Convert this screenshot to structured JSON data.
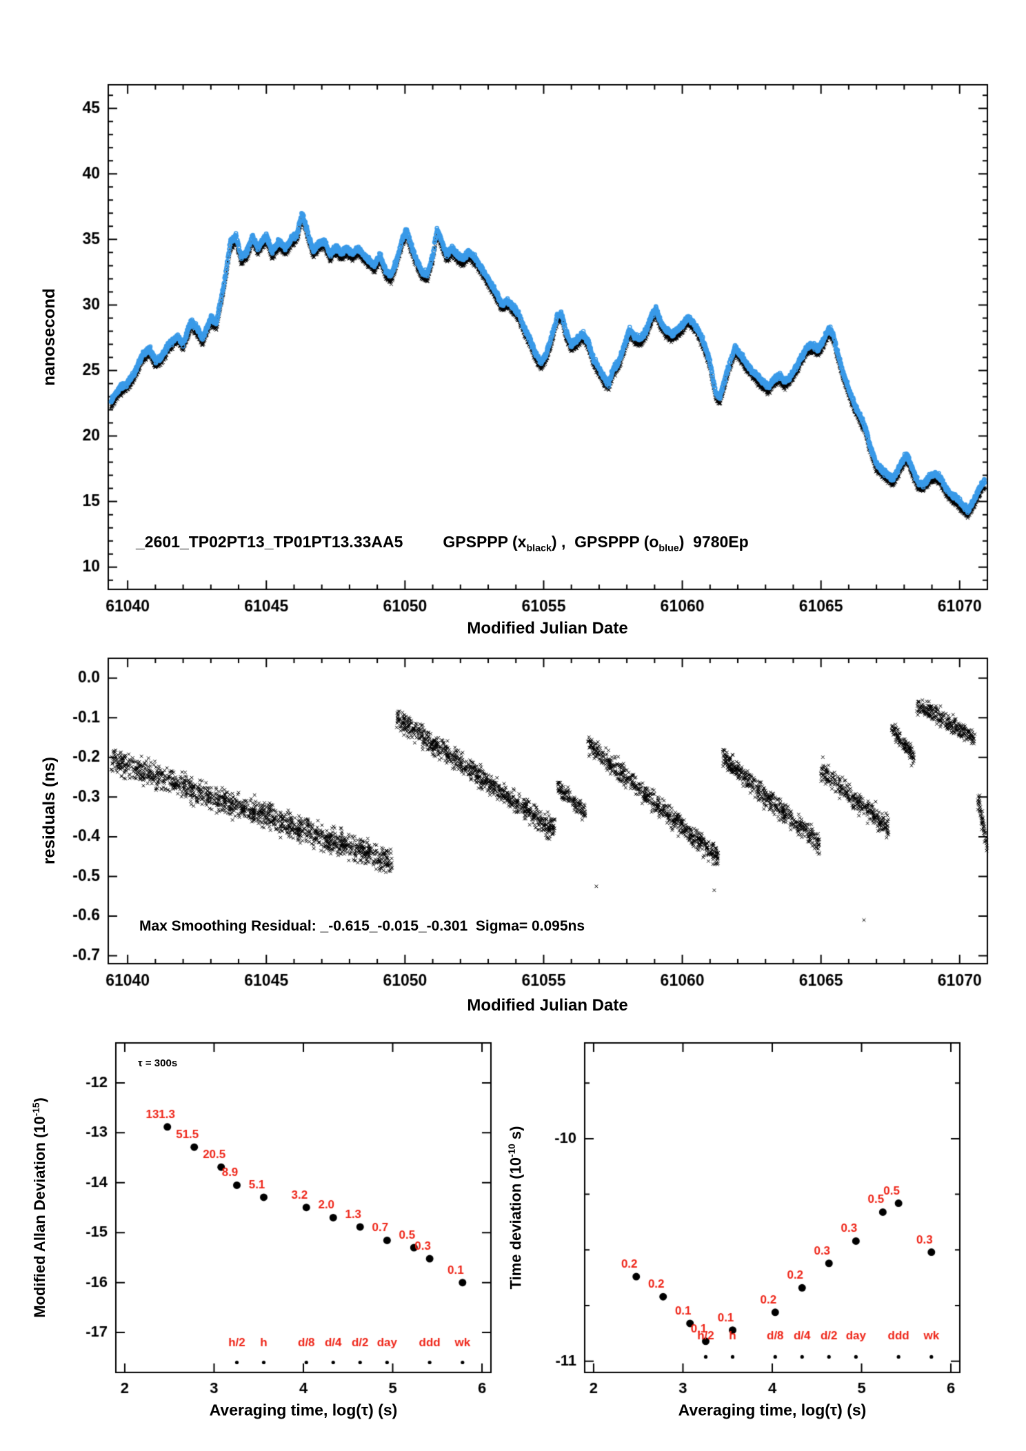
{
  "colors": {
    "axis": "#000000",
    "marker_black": "#000000",
    "marker_blue": "#3899e8",
    "label_red": "#ee2417"
  },
  "chart_data": [
    {
      "id": "phase-comparison",
      "type": "scatter",
      "xlabel": "Modified Julian Date",
      "ylabel": "nanosecond",
      "xlim": [
        61039.3,
        61071.0
      ],
      "ylim": [
        8.3,
        46.8
      ],
      "xticks": [
        61040,
        61045,
        61050,
        61055,
        61060,
        61065,
        61070
      ],
      "yticks": [
        10,
        15,
        20,
        25,
        30,
        35,
        40,
        45
      ],
      "xminor_step": 1,
      "yminor_step": 1,
      "annotation": {
        "id": "_2601_TP02PT13_TP01PT13.33AA5",
        "leg1": "GPSPPP (x",
        "leg1_sub": "black",
        "leg2": ") ,  GPSPPP (o",
        "leg2_sub": "blue",
        "leg3": ")  9780Ep"
      },
      "series": [
        {
          "name": "GPSPPP x black",
          "marker": "x",
          "color": "#000000",
          "offset": 0
        },
        {
          "name": "GPSPPP o blue",
          "marker": "o",
          "color": "#3899e8",
          "offset": 0.45
        }
      ],
      "noise_ns": 0.3,
      "keypoints": [
        [
          61039.4,
          22.2
        ],
        [
          61039.7,
          23.2
        ],
        [
          61040.0,
          23.6
        ],
        [
          61040.3,
          24.6
        ],
        [
          61040.55,
          25.8
        ],
        [
          61040.8,
          26.2
        ],
        [
          61041.0,
          25.3
        ],
        [
          61041.2,
          25.6
        ],
        [
          61041.5,
          26.6
        ],
        [
          61041.8,
          27.2
        ],
        [
          61042.0,
          26.6
        ],
        [
          61042.3,
          28.3
        ],
        [
          61042.5,
          27.8
        ],
        [
          61042.7,
          27.0
        ],
        [
          61043.0,
          28.6
        ],
        [
          61043.2,
          28.2
        ],
        [
          61043.5,
          31.5
        ],
        [
          61043.7,
          34.3
        ],
        [
          61043.9,
          34.8
        ],
        [
          61044.1,
          33.2
        ],
        [
          61044.3,
          33.6
        ],
        [
          61044.5,
          34.8
        ],
        [
          61044.7,
          33.9
        ],
        [
          61045.0,
          34.9
        ],
        [
          61045.2,
          33.6
        ],
        [
          61045.45,
          34.4
        ],
        [
          61045.7,
          33.9
        ],
        [
          61045.9,
          34.6
        ],
        [
          61046.1,
          34.9
        ],
        [
          61046.3,
          36.6
        ],
        [
          61046.5,
          35.0
        ],
        [
          61046.7,
          33.7
        ],
        [
          61046.9,
          34.3
        ],
        [
          61047.1,
          34.5
        ],
        [
          61047.3,
          33.4
        ],
        [
          61047.5,
          34.0
        ],
        [
          61047.7,
          33.5
        ],
        [
          61047.9,
          33.9
        ],
        [
          61048.1,
          33.5
        ],
        [
          61048.3,
          33.9
        ],
        [
          61048.5,
          33.4
        ],
        [
          61048.7,
          33.0
        ],
        [
          61048.9,
          32.6
        ],
        [
          61049.1,
          33.4
        ],
        [
          61049.3,
          32.2
        ],
        [
          61049.5,
          31.8
        ],
        [
          61049.7,
          33.0
        ],
        [
          61049.9,
          34.6
        ],
        [
          61050.05,
          35.3
        ],
        [
          61050.2,
          34.2
        ],
        [
          61050.4,
          33.1
        ],
        [
          61050.6,
          32.1
        ],
        [
          61050.8,
          31.9
        ],
        [
          61051.0,
          33.3
        ],
        [
          61051.15,
          35.3
        ],
        [
          61051.3,
          34.6
        ],
        [
          61051.5,
          33.4
        ],
        [
          61051.7,
          33.9
        ],
        [
          61051.9,
          33.3
        ],
        [
          61052.1,
          33.1
        ],
        [
          61052.3,
          33.6
        ],
        [
          61052.5,
          33.2
        ],
        [
          61052.7,
          32.6
        ],
        [
          61052.9,
          31.9
        ],
        [
          61053.1,
          31.2
        ],
        [
          61053.3,
          30.4
        ],
        [
          61053.5,
          29.6
        ],
        [
          61053.7,
          29.9
        ],
        [
          61053.9,
          29.4
        ],
        [
          61054.1,
          28.9
        ],
        [
          61054.3,
          27.8
        ],
        [
          61054.5,
          27.0
        ],
        [
          61054.7,
          25.9
        ],
        [
          61054.9,
          25.2
        ],
        [
          61055.1,
          25.8
        ],
        [
          61055.3,
          27.2
        ],
        [
          61055.5,
          28.8
        ],
        [
          61055.65,
          28.9
        ],
        [
          61055.8,
          27.5
        ],
        [
          61056.0,
          26.5
        ],
        [
          61056.2,
          26.9
        ],
        [
          61056.4,
          27.4
        ],
        [
          61056.6,
          26.8
        ],
        [
          61056.8,
          25.4
        ],
        [
          61057.0,
          24.7
        ],
        [
          61057.2,
          23.9
        ],
        [
          61057.35,
          23.6
        ],
        [
          61057.5,
          24.6
        ],
        [
          61057.7,
          25.2
        ],
        [
          61057.9,
          26.4
        ],
        [
          61058.1,
          27.7
        ],
        [
          61058.3,
          27.1
        ],
        [
          61058.5,
          27.0
        ],
        [
          61058.7,
          27.6
        ],
        [
          61058.9,
          28.8
        ],
        [
          61059.05,
          29.3
        ],
        [
          61059.2,
          28.3
        ],
        [
          61059.4,
          27.7
        ],
        [
          61059.6,
          27.3
        ],
        [
          61059.8,
          27.6
        ],
        [
          61060.0,
          28.0
        ],
        [
          61060.2,
          28.6
        ],
        [
          61060.4,
          28.2
        ],
        [
          61060.6,
          27.5
        ],
        [
          61060.8,
          26.5
        ],
        [
          61061.0,
          25.2
        ],
        [
          61061.2,
          22.9
        ],
        [
          61061.35,
          22.5
        ],
        [
          61061.5,
          23.6
        ],
        [
          61061.7,
          25.1
        ],
        [
          61061.9,
          26.3
        ],
        [
          61062.1,
          25.8
        ],
        [
          61062.3,
          25.1
        ],
        [
          61062.5,
          24.6
        ],
        [
          61062.7,
          24.1
        ],
        [
          61062.9,
          23.7
        ],
        [
          61063.1,
          23.3
        ],
        [
          61063.3,
          23.9
        ],
        [
          61063.5,
          24.2
        ],
        [
          61063.7,
          23.7
        ],
        [
          61063.9,
          24.1
        ],
        [
          61064.1,
          24.8
        ],
        [
          61064.3,
          25.6
        ],
        [
          61064.5,
          26.4
        ],
        [
          61064.7,
          26.5
        ],
        [
          61064.9,
          26.2
        ],
        [
          61065.1,
          26.9
        ],
        [
          61065.3,
          27.8
        ],
        [
          61065.45,
          27.2
        ],
        [
          61065.6,
          25.9
        ],
        [
          61065.8,
          24.4
        ],
        [
          61066.0,
          23.1
        ],
        [
          61066.2,
          22.0
        ],
        [
          61066.4,
          21.1
        ],
        [
          61066.6,
          20.2
        ],
        [
          61066.8,
          18.6
        ],
        [
          61067.0,
          17.4
        ],
        [
          61067.2,
          17.0
        ],
        [
          61067.4,
          16.6
        ],
        [
          61067.6,
          16.3
        ],
        [
          61067.8,
          17.1
        ],
        [
          61068.0,
          17.9
        ],
        [
          61068.1,
          18.1
        ],
        [
          61068.3,
          17.0
        ],
        [
          61068.5,
          16.0
        ],
        [
          61068.7,
          15.9
        ],
        [
          61068.9,
          16.4
        ],
        [
          61069.1,
          16.7
        ],
        [
          61069.3,
          16.4
        ],
        [
          61069.5,
          15.6
        ],
        [
          61069.7,
          15.1
        ],
        [
          61069.9,
          14.8
        ],
        [
          61070.1,
          14.3
        ],
        [
          61070.3,
          13.9
        ],
        [
          61070.5,
          14.6
        ],
        [
          61070.7,
          15.5
        ],
        [
          61070.9,
          16.2
        ]
      ]
    },
    {
      "id": "residuals",
      "type": "scatter",
      "marker": "x",
      "xlabel": "Modified Julian Date",
      "ylabel": "residuals (ns)",
      "xlim": [
        61039.3,
        61071.0
      ],
      "ylim": [
        -0.72,
        0.05
      ],
      "xticks": [
        61040,
        61045,
        61050,
        61055,
        61060,
        61065,
        61070
      ],
      "yticks": [
        0.0,
        -0.1,
        -0.2,
        -0.3,
        -0.4,
        -0.5,
        -0.6,
        -0.7
      ],
      "ytick_labels": [
        "0.0",
        "-0.1",
        "-0.2",
        "-0.3",
        "-0.4",
        "-0.5",
        "-0.6",
        "-0.7"
      ],
      "xminor_step": 1,
      "annotation": "Max Smoothing Residual: _-0.615_-0.015_-0.301  Sigma= 0.095ns",
      "segments": [
        {
          "x0": 61039.4,
          "x1": 61049.55,
          "y0": -0.205,
          "y1": -0.465,
          "spread": 0.046,
          "n": 1350
        },
        {
          "x0": 61049.7,
          "x1": 61055.4,
          "y0": -0.1,
          "y1": -0.385,
          "spread": 0.04,
          "n": 780
        },
        {
          "x0": 61055.5,
          "x1": 61056.5,
          "y0": -0.275,
          "y1": -0.34,
          "spread": 0.03,
          "n": 130
        },
        {
          "x0": 61056.6,
          "x1": 61061.3,
          "y0": -0.165,
          "y1": -0.455,
          "spread": 0.038,
          "n": 620
        },
        {
          "x0": 61061.45,
          "x1": 61064.95,
          "y0": -0.2,
          "y1": -0.42,
          "spread": 0.04,
          "n": 470
        },
        {
          "x0": 61065.0,
          "x1": 61067.45,
          "y0": -0.235,
          "y1": -0.375,
          "spread": 0.042,
          "n": 310
        },
        {
          "x0": 61067.55,
          "x1": 61068.35,
          "y0": -0.125,
          "y1": -0.2,
          "spread": 0.03,
          "n": 115
        },
        {
          "x0": 61068.45,
          "x1": 61070.55,
          "y0": -0.065,
          "y1": -0.155,
          "spread": 0.033,
          "n": 270
        },
        {
          "x0": 61070.65,
          "x1": 61071.0,
          "y0": -0.295,
          "y1": -0.43,
          "spread": 0.038,
          "n": 60
        }
      ],
      "outliers": [
        [
          61056.9,
          -0.525
        ],
        [
          61061.15,
          -0.535
        ],
        [
          61066.55,
          -0.61
        ]
      ]
    },
    {
      "id": "mdev",
      "type": "scatter",
      "xlabel": "Averaging time, log(τ) (s)",
      "ylabel": "Modified Allan Deviation (10^-15)",
      "ylabel_parts": {
        "pre": "Modified Allan Deviation (10",
        "sup": "-15",
        "post": ")"
      },
      "tau_note": "τ = 300s",
      "xlim": [
        1.9,
        6.1
      ],
      "ylim": [
        -17.8,
        -11.2
      ],
      "xticks": [
        2,
        3,
        4,
        5,
        6
      ],
      "yticks": [
        -12,
        -13,
        -14,
        -15,
        -16,
        -17
      ],
      "points": [
        {
          "log_tau": 2.477,
          "mdev_1e15": 131.3,
          "label": "131.3"
        },
        {
          "log_tau": 2.778,
          "mdev_1e15": 51.5,
          "label": "51.5"
        },
        {
          "log_tau": 3.079,
          "mdev_1e15": 20.5,
          "label": "20.5"
        },
        {
          "log_tau": 3.255,
          "mdev_1e15": 8.9,
          "label": "8.9"
        },
        {
          "log_tau": 3.556,
          "mdev_1e15": 5.1,
          "label": "5.1"
        },
        {
          "log_tau": 4.033,
          "mdev_1e15": 3.2,
          "label": "3.2"
        },
        {
          "log_tau": 4.334,
          "mdev_1e15": 2.0,
          "label": "2.0"
        },
        {
          "log_tau": 4.635,
          "mdev_1e15": 1.3,
          "label": "1.3"
        },
        {
          "log_tau": 4.937,
          "mdev_1e15": 0.7,
          "label": "0.7"
        },
        {
          "log_tau": 5.238,
          "mdev_1e15": 0.5,
          "label": "0.5"
        },
        {
          "log_tau": 5.414,
          "mdev_1e15": 0.3,
          "label": "0.3"
        },
        {
          "log_tau": 5.782,
          "mdev_1e15": 0.1,
          "label": "0.1"
        }
      ],
      "tau_marks": [
        {
          "log_tau": 3.255,
          "label": "h/2"
        },
        {
          "log_tau": 3.556,
          "label": "h"
        },
        {
          "log_tau": 4.033,
          "label": "d/8"
        },
        {
          "log_tau": 4.334,
          "label": "d/4"
        },
        {
          "log_tau": 4.635,
          "label": "d/2"
        },
        {
          "log_tau": 4.937,
          "label": "day"
        },
        {
          "log_tau": 5.414,
          "label": "ddd"
        },
        {
          "log_tau": 5.782,
          "label": "wk"
        }
      ],
      "tau_marks_label_y": -17.28,
      "tau_marks_dot_y": -17.6
    },
    {
      "id": "tdev",
      "type": "scatter",
      "xlabel": "Averaging time, log(τ) (s)",
      "ylabel": "Time deviation (10^-10 s)",
      "ylabel_parts": {
        "pre": "Time deviation (10",
        "sup": "-10",
        "post": " s)"
      },
      "xlim": [
        1.9,
        6.1
      ],
      "ylim": [
        -11.05,
        -9.57
      ],
      "xticks": [
        2,
        3,
        4,
        5,
        6
      ],
      "yticks": [
        -10,
        -11
      ],
      "yticks_minor": [
        -9.75,
        -10.25,
        -10.5,
        -10.75
      ],
      "points": [
        {
          "log_tau": 2.477,
          "log_tdev": -10.62,
          "label": "0.2"
        },
        {
          "log_tau": 2.778,
          "log_tdev": -10.71,
          "label": "0.2"
        },
        {
          "log_tau": 3.079,
          "log_tdev": -10.83,
          "label": "0.1"
        },
        {
          "log_tau": 3.255,
          "log_tdev": -10.91,
          "label": "0.1"
        },
        {
          "log_tau": 3.556,
          "log_tdev": -10.86,
          "label": "0.1"
        },
        {
          "log_tau": 4.033,
          "log_tdev": -10.78,
          "label": "0.2"
        },
        {
          "log_tau": 4.334,
          "log_tdev": -10.67,
          "label": "0.2"
        },
        {
          "log_tau": 4.635,
          "log_tdev": -10.56,
          "label": "0.3"
        },
        {
          "log_tau": 4.937,
          "log_tdev": -10.46,
          "label": "0.3"
        },
        {
          "log_tau": 5.238,
          "log_tdev": -10.33,
          "label": "0.5"
        },
        {
          "log_tau": 5.414,
          "log_tdev": -10.29,
          "label": "0.5"
        },
        {
          "log_tau": 5.782,
          "log_tdev": -10.51,
          "label": "0.3"
        }
      ],
      "tau_marks": [
        {
          "log_tau": 3.255,
          "label": "h/2"
        },
        {
          "log_tau": 3.556,
          "label": "h"
        },
        {
          "log_tau": 4.033,
          "label": "d/8"
        },
        {
          "log_tau": 4.334,
          "label": "d/4"
        },
        {
          "log_tau": 4.635,
          "label": "d/2"
        },
        {
          "log_tau": 4.937,
          "label": "day"
        },
        {
          "log_tau": 5.414,
          "label": "ddd"
        },
        {
          "log_tau": 5.782,
          "label": "wk"
        }
      ],
      "tau_marks_label_y": -10.9,
      "tau_marks_dot_y": -10.98
    }
  ]
}
